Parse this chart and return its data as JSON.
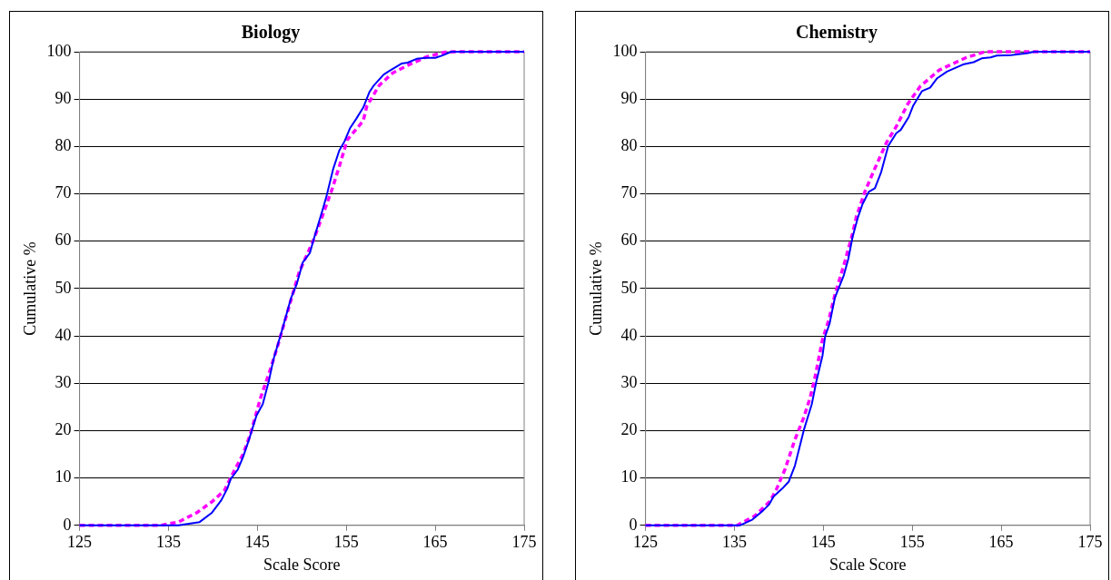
{
  "chart_data": [
    {
      "type": "line",
      "title": "Biology",
      "xlabel": "Scale Score",
      "ylabel": "Cumulative %",
      "xlim": [
        125,
        175
      ],
      "xticks": [
        125,
        135,
        145,
        155,
        165,
        175
      ],
      "ylim": [
        0,
        100
      ],
      "yticks": [
        0,
        10,
        20,
        30,
        40,
        50,
        60,
        70,
        80,
        90,
        100
      ],
      "grid": "y",
      "legend": false,
      "marker": "none",
      "series": [
        {
          "color": "#0000ff",
          "line_style": "solid",
          "x": [
            125,
            136.1,
            138.5,
            139.9,
            140.9,
            141.6,
            142.0,
            142.8,
            143.4,
            144.0,
            144.9,
            145.6,
            146.3,
            146.8,
            147.8,
            148.8,
            149.4,
            150.1,
            150.9,
            151.3,
            152.3,
            152.8,
            153.5,
            154.2,
            154.8,
            155.4,
            156.1,
            156.9,
            157.6,
            158.1,
            159.2,
            159.8,
            161.2,
            161.9,
            162.9,
            163.9,
            165.0,
            165.8,
            166.8,
            175
          ],
          "values": [
            0,
            0,
            0.7,
            2.7,
            5.2,
            7.7,
            9.8,
            11.8,
            14.5,
            17.8,
            23.2,
            25.6,
            30.6,
            35.0,
            41.4,
            48.1,
            50.8,
            55.5,
            57.5,
            60.2,
            66.4,
            69.7,
            75.1,
            79.1,
            81.1,
            83.8,
            85.8,
            88.2,
            91.5,
            92.9,
            95.2,
            95.9,
            97.5,
            97.7,
            98.5,
            98.7,
            98.7,
            99.2,
            100,
            100
          ]
        },
        {
          "color": "#ff00ff",
          "line_style": "dashed",
          "x": [
            125,
            134.1,
            136.1,
            138.2,
            139.9,
            141.3,
            142.0,
            143.4,
            144.2,
            145.4,
            146.4,
            147.3,
            148.7,
            149.7,
            151.3,
            152.5,
            153.4,
            154.2,
            155.1,
            156.9,
            157.3,
            158.7,
            160.2,
            162.1,
            164.0,
            166.1,
            167.1,
            175
          ],
          "values": [
            0,
            0,
            0.7,
            2.7,
            5.0,
            7.4,
            10.1,
            15.1,
            19.2,
            27.2,
            32.6,
            38.0,
            47.1,
            53.5,
            60.2,
            66.3,
            71.0,
            75.7,
            81.4,
            85.4,
            88.5,
            92.9,
            95.5,
            97.3,
            98.9,
            99.9,
            100,
            100
          ]
        }
      ]
    },
    {
      "type": "line",
      "title": "Chemistry",
      "xlabel": "Scale Score",
      "ylabel": "Cumulative %",
      "xlim": [
        125,
        175
      ],
      "xticks": [
        125,
        135,
        145,
        155,
        165,
        175
      ],
      "ylim": [
        0,
        100
      ],
      "yticks": [
        0,
        10,
        20,
        30,
        40,
        50,
        60,
        70,
        80,
        90,
        100
      ],
      "grid": "y",
      "legend": false,
      "marker": "none",
      "series": [
        {
          "color": "#0000ff",
          "line_style": "solid",
          "x": [
            125,
            135.6,
            137.0,
            138.2,
            138.9,
            139.4,
            140.4,
            141.1,
            141.8,
            142.8,
            143.7,
            144.2,
            144.9,
            145.2,
            145.7,
            146.3,
            147.3,
            147.8,
            148.3,
            148.9,
            149.4,
            150.1,
            150.8,
            151.5,
            152.3,
            153.2,
            153.7,
            154.6,
            155.1,
            156.1,
            157.0,
            157.8,
            158.9,
            160.7,
            161.9,
            162.8,
            163.8,
            164.5,
            166.1,
            168.0,
            168.7,
            175
          ],
          "values": [
            0,
            0,
            1.2,
            3.1,
            4.4,
            6.1,
            7.8,
            9.2,
            12.6,
            20.1,
            25.6,
            30.3,
            35.8,
            39.9,
            42.6,
            48.1,
            52.8,
            56.2,
            61.0,
            65.1,
            67.8,
            70.4,
            71.2,
            74.6,
            80.1,
            82.8,
            83.5,
            86.2,
            88.6,
            91.7,
            92.4,
            94.4,
            95.8,
            97.3,
            97.8,
            98.6,
            98.8,
            99.2,
            99.3,
            99.7,
            100,
            100
          ]
        },
        {
          "color": "#ff00ff",
          "line_style": "dashed",
          "x": [
            125,
            135.3,
            137.3,
            139.0,
            139.7,
            140.7,
            141.8,
            142.8,
            143.5,
            144.0,
            144.9,
            145.6,
            146.3,
            147.3,
            148.3,
            148.7,
            149.7,
            150.8,
            152.1,
            153.2,
            154.5,
            155.9,
            158.0,
            161.1,
            163.2,
            175
          ],
          "values": [
            0,
            0,
            2.0,
            5.1,
            7.5,
            11.9,
            18.1,
            22.8,
            26.9,
            30.7,
            39.2,
            43.3,
            48.7,
            54.9,
            61.7,
            65.1,
            70.6,
            75.4,
            80.8,
            84.2,
            89.0,
            92.7,
            96.1,
            98.8,
            100,
            100
          ]
        }
      ]
    }
  ]
}
